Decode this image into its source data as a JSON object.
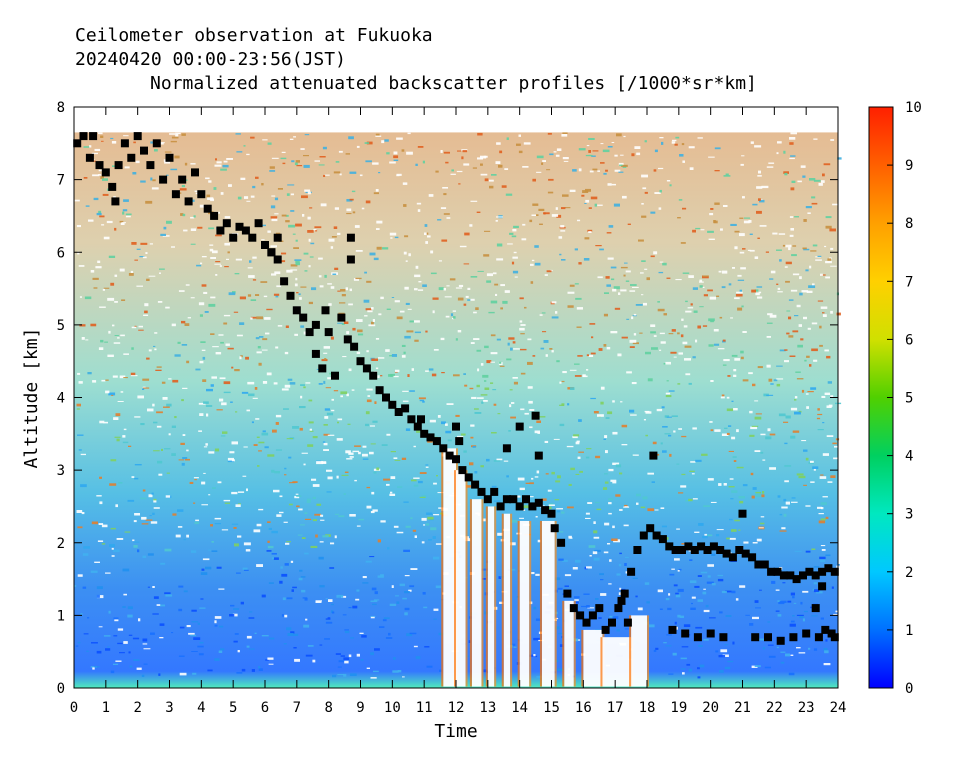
{
  "chart_data": {
    "type": "heatmap",
    "title_lines": [
      "Ceilometer observation at Fukuoka",
      "20240420  00:00-23:56(JST)"
    ],
    "subtitle": "Normalized attenuated backscatter profiles [/1000*sr*km]",
    "xlabel": "Time",
    "ylabel": "Altitude [km]",
    "xlim": [
      0,
      24
    ],
    "ylim": [
      0,
      8
    ],
    "x_ticks": [
      0,
      1,
      2,
      3,
      4,
      5,
      6,
      7,
      8,
      9,
      10,
      11,
      12,
      13,
      14,
      15,
      16,
      17,
      18,
      19,
      20,
      21,
      22,
      23,
      24
    ],
    "y_ticks": [
      0,
      1,
      2,
      3,
      4,
      5,
      6,
      7,
      8
    ],
    "data_ceiling_km": 7.65,
    "colorbar": {
      "range": [
        0,
        10
      ],
      "ticks": [
        0,
        1,
        2,
        3,
        4,
        5,
        6,
        7,
        8,
        9,
        10
      ],
      "stops": [
        "#0000ff",
        "#0070ff",
        "#00c8ff",
        "#00e8c0",
        "#00d060",
        "#50d000",
        "#d0e000",
        "#ffd000",
        "#ffa000",
        "#ff6000",
        "#ff2000"
      ]
    },
    "cloud_base_heights": [
      [
        0.1,
        7.5
      ],
      [
        0.3,
        7.6
      ],
      [
        0.5,
        7.3
      ],
      [
        0.6,
        7.6
      ],
      [
        0.8,
        7.2
      ],
      [
        1.0,
        7.1
      ],
      [
        1.2,
        6.9
      ],
      [
        1.3,
        6.7
      ],
      [
        1.4,
        7.2
      ],
      [
        1.6,
        7.5
      ],
      [
        1.8,
        7.3
      ],
      [
        2.0,
        7.6
      ],
      [
        2.2,
        7.4
      ],
      [
        2.4,
        7.2
      ],
      [
        2.6,
        7.5
      ],
      [
        2.8,
        7.0
      ],
      [
        3.0,
        7.3
      ],
      [
        3.2,
        6.8
      ],
      [
        3.4,
        7.0
      ],
      [
        3.6,
        6.7
      ],
      [
        3.8,
        7.1
      ],
      [
        4.0,
        6.8
      ],
      [
        4.2,
        6.6
      ],
      [
        4.4,
        6.5
      ],
      [
        4.6,
        6.3
      ],
      [
        4.8,
        6.4
      ],
      [
        5.0,
        6.2
      ],
      [
        5.2,
        6.35
      ],
      [
        5.4,
        6.3
      ],
      [
        5.6,
        6.2
      ],
      [
        5.8,
        6.4
      ],
      [
        6.0,
        6.1
      ],
      [
        6.2,
        6.0
      ],
      [
        6.4,
        5.9
      ],
      [
        6.6,
        5.6
      ],
      [
        6.8,
        5.4
      ],
      [
        7.0,
        5.2
      ],
      [
        7.2,
        5.1
      ],
      [
        7.4,
        4.9
      ],
      [
        7.6,
        4.6
      ],
      [
        7.8,
        4.4
      ],
      [
        8.0,
        4.9
      ],
      [
        8.2,
        4.3
      ],
      [
        8.4,
        5.1
      ],
      [
        8.6,
        4.8
      ],
      [
        8.8,
        4.7
      ],
      [
        9.0,
        4.5
      ],
      [
        9.2,
        4.4
      ],
      [
        9.4,
        4.3
      ],
      [
        9.6,
        4.1
      ],
      [
        9.8,
        4.0
      ],
      [
        10.0,
        3.9
      ],
      [
        10.2,
        3.8
      ],
      [
        10.4,
        3.85
      ],
      [
        10.6,
        3.7
      ],
      [
        10.8,
        3.6
      ],
      [
        11.0,
        3.5
      ],
      [
        11.2,
        3.45
      ],
      [
        11.4,
        3.4
      ],
      [
        11.6,
        3.3
      ],
      [
        11.8,
        3.2
      ],
      [
        12.0,
        3.15
      ],
      [
        12.2,
        3.0
      ],
      [
        12.4,
        2.9
      ],
      [
        12.6,
        2.8
      ],
      [
        12.8,
        2.7
      ],
      [
        13.0,
        2.6
      ],
      [
        13.2,
        2.7
      ],
      [
        13.4,
        2.5
      ],
      [
        13.6,
        2.6
      ],
      [
        13.8,
        2.6
      ],
      [
        14.0,
        2.5
      ],
      [
        14.2,
        2.6
      ],
      [
        14.4,
        2.5
      ],
      [
        14.6,
        2.55
      ],
      [
        14.8,
        2.45
      ],
      [
        15.0,
        2.4
      ],
      [
        15.1,
        2.2
      ],
      [
        15.3,
        2.0
      ],
      [
        15.5,
        1.3
      ],
      [
        15.7,
        1.1
      ],
      [
        15.9,
        1.0
      ],
      [
        16.1,
        0.9
      ],
      [
        16.3,
        1.0
      ],
      [
        16.5,
        1.1
      ],
      [
        16.7,
        0.8
      ],
      [
        16.9,
        0.9
      ],
      [
        17.1,
        1.1
      ],
      [
        17.3,
        1.3
      ],
      [
        17.5,
        1.6
      ],
      [
        17.7,
        1.9
      ],
      [
        17.9,
        2.1
      ],
      [
        18.1,
        2.2
      ],
      [
        18.3,
        2.1
      ],
      [
        18.5,
        2.05
      ],
      [
        18.7,
        1.95
      ],
      [
        18.9,
        1.9
      ],
      [
        19.1,
        1.9
      ],
      [
        19.3,
        1.95
      ],
      [
        19.5,
        1.9
      ],
      [
        19.7,
        1.95
      ],
      [
        19.9,
        1.9
      ],
      [
        20.1,
        1.95
      ],
      [
        20.3,
        1.9
      ],
      [
        20.5,
        1.85
      ],
      [
        20.7,
        1.8
      ],
      [
        20.9,
        1.9
      ],
      [
        21.1,
        1.85
      ],
      [
        21.3,
        1.8
      ],
      [
        21.5,
        1.7
      ],
      [
        21.7,
        1.7
      ],
      [
        21.9,
        1.6
      ],
      [
        22.1,
        1.6
      ],
      [
        22.3,
        1.55
      ],
      [
        22.5,
        1.55
      ],
      [
        22.7,
        1.5
      ],
      [
        22.9,
        1.55
      ],
      [
        23.1,
        1.6
      ],
      [
        23.3,
        1.55
      ],
      [
        23.5,
        1.6
      ],
      [
        23.7,
        1.65
      ],
      [
        23.9,
        1.6
      ],
      [
        6.2,
        6.0
      ],
      [
        6.4,
        6.2
      ],
      [
        7.6,
        5.0
      ],
      [
        7.9,
        5.2
      ],
      [
        8.7,
        6.2
      ],
      [
        8.7,
        5.9
      ],
      [
        10.9,
        3.7
      ],
      [
        12.0,
        3.6
      ],
      [
        12.1,
        3.4
      ],
      [
        13.6,
        3.3
      ],
      [
        14.0,
        3.6
      ],
      [
        14.5,
        3.75
      ],
      [
        14.6,
        3.2
      ],
      [
        17.2,
        1.2
      ],
      [
        17.4,
        0.9
      ],
      [
        18.2,
        3.2
      ],
      [
        18.8,
        0.8
      ],
      [
        19.2,
        0.75
      ],
      [
        19.6,
        0.7
      ],
      [
        20.0,
        0.75
      ],
      [
        20.4,
        0.7
      ],
      [
        21.0,
        2.4
      ],
      [
        21.4,
        0.7
      ],
      [
        21.8,
        0.7
      ],
      [
        22.2,
        0.65
      ],
      [
        22.6,
        0.7
      ],
      [
        23.0,
        0.75
      ],
      [
        23.4,
        0.7
      ],
      [
        23.6,
        0.8
      ],
      [
        23.8,
        0.75
      ],
      [
        23.9,
        0.7
      ],
      [
        23.3,
        1.1
      ],
      [
        23.5,
        1.4
      ]
    ]
  }
}
